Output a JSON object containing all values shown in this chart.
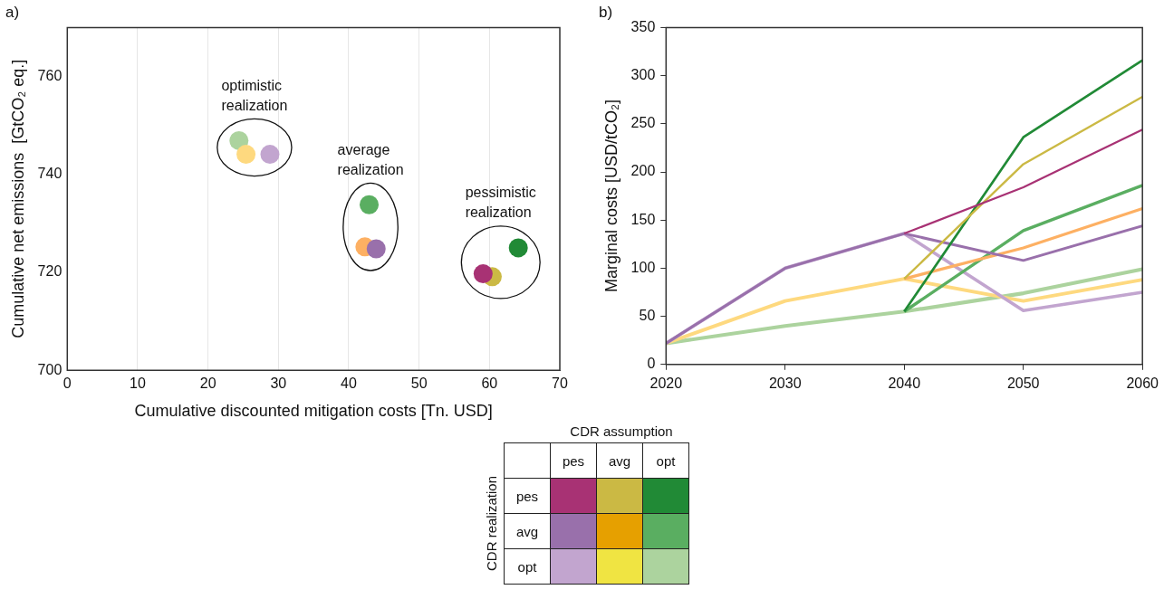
{
  "chart_data": [
    {
      "type": "scatter",
      "title": "a)",
      "xlabel": "Cumulative discounted mitigation costs [Tn. USD]",
      "ylabel": "Cumulative net emissions  [GtCO₂ eq.]",
      "xlim": [
        0,
        70
      ],
      "xticks": [
        0,
        10,
        20,
        30,
        40,
        50,
        60,
        70
      ],
      "ylim": [
        700,
        770
      ],
      "yticks": [
        700,
        720,
        740,
        760
      ],
      "grid": "x",
      "legend": false,
      "marker": "circle",
      "annotations": [
        "optimistic realization",
        "average realization",
        "pessimistic realization"
      ],
      "series": [
        {
          "color": "#a83274",
          "x": [
            59.1
          ],
          "values": [
            719.7
          ]
        },
        {
          "color": "#cbb944",
          "x": [
            60.4
          ],
          "values": [
            719.1
          ]
        },
        {
          "color": "#218a36",
          "x": [
            64.1
          ],
          "values": [
            725.0
          ]
        },
        {
          "color": "#9970ab",
          "x": [
            43.9
          ],
          "values": [
            724.8
          ]
        },
        {
          "color": "#fdb063",
          "x": [
            42.3
          ],
          "values": [
            725.2
          ]
        },
        {
          "color": "#5aae61",
          "x": [
            42.9
          ],
          "values": [
            733.8
          ]
        },
        {
          "color": "#c2a5cf",
          "x": [
            28.8
          ],
          "values": [
            744.1
          ]
        },
        {
          "color": "#fed97f",
          "x": [
            25.4
          ],
          "values": [
            744.1
          ]
        },
        {
          "color": "#acd39e",
          "x": [
            24.4
          ],
          "values": [
            746.9
          ]
        }
      ]
    },
    {
      "type": "line",
      "title": "b)",
      "ylabel": "Marginal costs [USD/tCO₂]",
      "x": [
        2020,
        2030,
        2040,
        2050,
        2060
      ],
      "xlim": [
        2020,
        2060
      ],
      "xticks": [
        2020,
        2030,
        2040,
        2050,
        2060
      ],
      "ylim": [
        0,
        350
      ],
      "yticks": [
        0,
        50,
        100,
        150,
        200,
        250,
        300,
        350
      ],
      "grid": false,
      "legend": false,
      "marker": "none",
      "line_style": "solid",
      "series": [
        {
          "color": "#a83274",
          "values": [
            null,
            null,
            136,
            184,
            244
          ]
        },
        {
          "color": "#cbb944",
          "values": [
            null,
            null,
            89,
            208,
            278
          ]
        },
        {
          "color": "#218a36",
          "values": [
            null,
            null,
            55,
            236,
            316
          ]
        },
        {
          "color": "#9970ab",
          "values": [
            22,
            100,
            136,
            108,
            144
          ]
        },
        {
          "color": "#fdb063",
          "values": [
            null,
            null,
            89,
            121,
            162
          ]
        },
        {
          "color": "#5aae61",
          "values": [
            null,
            null,
            55,
            139,
            186
          ]
        },
        {
          "color": "#c2a5cf",
          "values": [
            22,
            100,
            136,
            56,
            75
          ]
        },
        {
          "color": "#fed97f",
          "values": [
            22,
            66,
            89,
            66,
            88
          ]
        },
        {
          "color": "#acd39e",
          "values": [
            22,
            40,
            55,
            74,
            99
          ]
        }
      ]
    },
    {
      "type": "other",
      "title": "CDR assumption",
      "ylabel": "CDR realization",
      "categories": [
        "pes",
        "avg",
        "opt"
      ],
      "y_categories": [
        "pes",
        "avg",
        "opt"
      ],
      "colors": [
        "#a83274",
        "#cbb944",
        "#218a36",
        "#9970ab",
        "#e6a000",
        "#5aae61",
        "#c2a5cf",
        "#f0e442",
        "#acd39e"
      ]
    }
  ]
}
